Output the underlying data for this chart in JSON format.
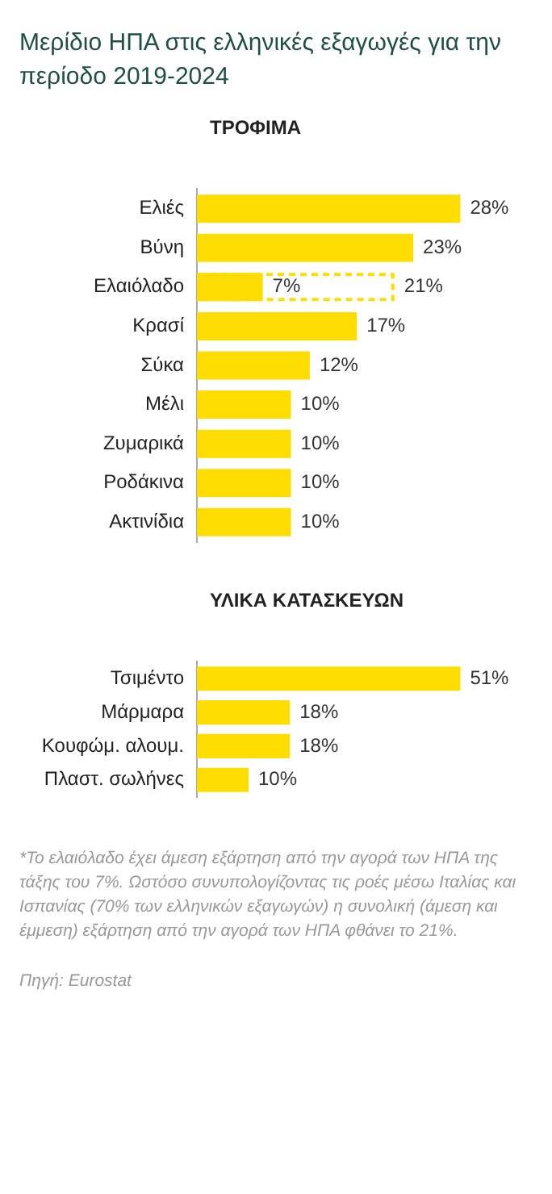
{
  "chart_data": [
    {
      "type": "bar",
      "orientation": "horizontal",
      "title": "Μερίδιο ΗΠΑ στις ελληνικές εξαγωγές για την περίοδο 2019-2024",
      "subtitle": "ΤΡΟΦΙΜΑ",
      "categories": [
        "Ελιές",
        "Βύνη",
        "Ελαιόλαδο",
        "Κρασί",
        "Σύκα",
        "Μέλι",
        "Ζυμαρικά",
        "Ροδάκινα",
        "Ακτινίδια"
      ],
      "series": [
        {
          "color": "#ffdd00",
          "values": [
            28,
            23,
            7,
            17,
            12,
            10,
            10,
            10,
            10
          ],
          "value_labels": [
            "28%",
            "23%",
            "7%",
            "17%",
            "12%",
            "10%",
            "10%",
            "10%",
            "10%"
          ]
        },
        {
          "color": "#ffdd00",
          "line_style": "dashed",
          "values": [
            null,
            null,
            21,
            null,
            null,
            null,
            null,
            null,
            null
          ],
          "value_labels": [
            null,
            null,
            "21%",
            null,
            null,
            null,
            null,
            null,
            null
          ]
        }
      ]
    },
    {
      "type": "bar",
      "orientation": "horizontal",
      "subtitle": "ΥΛΙΚΑ ΚΑΤΑΣΚΕΥΩΝ",
      "categories": [
        "Τσιμέντο",
        "Μάρμαρα",
        "Κουφώμ. αλουμ.",
        "Πλαστ. σωλήνες"
      ],
      "series": [
        {
          "color": "#ffdd00",
          "values": [
            51,
            18,
            18,
            10
          ],
          "value_labels": [
            "51%",
            "18%",
            "18%",
            "10%"
          ]
        }
      ],
      "annotations": [
        "*Το ελαιόλαδο έχει άμεση εξάρτηση από την αγορά των ΗΠΑ της τάξης του 7%. Ωστόσο συνυπολογίζοντας τις ροές μέσω Ιταλίας και Ισπανίας (70% των ελληνικών εξαγωγών) η συνολική (άμεση και έμμεση) εξάρτηση από την αγορά των ΗΠΑ φθάνει το 21%.",
        "Πηγή: Eurostat"
      ]
    }
  ]
}
